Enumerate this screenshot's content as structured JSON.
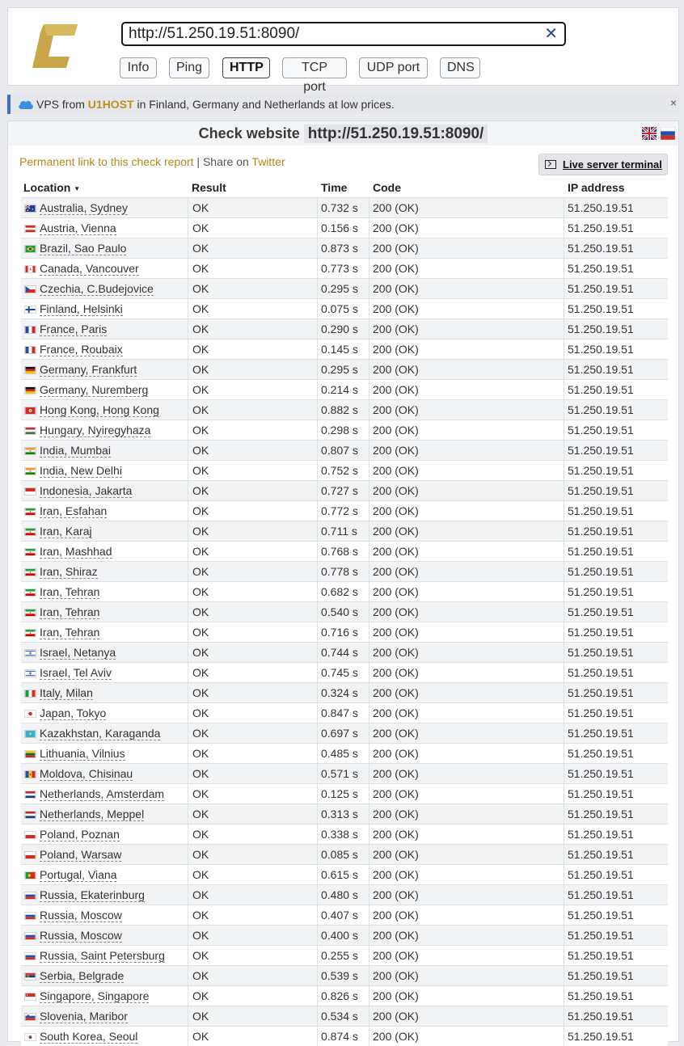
{
  "header": {
    "url": "http://51.250.19.51:8090/",
    "clear_icon": "✕",
    "tools": [
      "Info",
      "Ping",
      "HTTP",
      "TCP port",
      "UDP port",
      "DNS"
    ],
    "active_tool": "HTTP"
  },
  "ad": {
    "prefix": "VPS from ",
    "brand": "U1HOST",
    "suffix": " in Finland, Germany and Netherlands at low prices.",
    "close": "×"
  },
  "panel": {
    "title_label": "Check website",
    "target": "http://51.250.19.51:8090/",
    "permalink": "Permanent link to this check report",
    "separator": " | Share on ",
    "twitter": "Twitter",
    "terminal_button": "Live server terminal"
  },
  "table": {
    "headers": {
      "location": "Location",
      "result": "Result",
      "time": "Time",
      "code": "Code",
      "ip": "IP address"
    },
    "rows": [
      {
        "flag": "au",
        "location": "Australia, Sydney",
        "result": "OK",
        "time": "0.732 s",
        "code": "200 (OK)",
        "ip": "51.250.19.51"
      },
      {
        "flag": "at",
        "location": "Austria, Vienna",
        "result": "OK",
        "time": "0.156 s",
        "code": "200 (OK)",
        "ip": "51.250.19.51"
      },
      {
        "flag": "br",
        "location": "Brazil, Sao Paulo",
        "result": "OK",
        "time": "0.873 s",
        "code": "200 (OK)",
        "ip": "51.250.19.51"
      },
      {
        "flag": "ca",
        "location": "Canada, Vancouver",
        "result": "OK",
        "time": "0.773 s",
        "code": "200 (OK)",
        "ip": "51.250.19.51"
      },
      {
        "flag": "cz",
        "location": "Czechia, C.Budejovice",
        "result": "OK",
        "time": "0.295 s",
        "code": "200 (OK)",
        "ip": "51.250.19.51"
      },
      {
        "flag": "fi",
        "location": "Finland, Helsinki",
        "result": "OK",
        "time": "0.075 s",
        "code": "200 (OK)",
        "ip": "51.250.19.51"
      },
      {
        "flag": "fr",
        "location": "France, Paris",
        "result": "OK",
        "time": "0.290 s",
        "code": "200 (OK)",
        "ip": "51.250.19.51"
      },
      {
        "flag": "fr",
        "location": "France, Roubaix",
        "result": "OK",
        "time": "0.145 s",
        "code": "200 (OK)",
        "ip": "51.250.19.51"
      },
      {
        "flag": "de",
        "location": "Germany, Frankfurt",
        "result": "OK",
        "time": "0.295 s",
        "code": "200 (OK)",
        "ip": "51.250.19.51"
      },
      {
        "flag": "de",
        "location": "Germany, Nuremberg",
        "result": "OK",
        "time": "0.214 s",
        "code": "200 (OK)",
        "ip": "51.250.19.51"
      },
      {
        "flag": "hk",
        "location": "Hong Kong, Hong Kong",
        "result": "OK",
        "time": "0.882 s",
        "code": "200 (OK)",
        "ip": "51.250.19.51"
      },
      {
        "flag": "hu",
        "location": "Hungary, Nyiregyhaza",
        "result": "OK",
        "time": "0.298 s",
        "code": "200 (OK)",
        "ip": "51.250.19.51"
      },
      {
        "flag": "in",
        "location": "India, Mumbai",
        "result": "OK",
        "time": "0.807 s",
        "code": "200 (OK)",
        "ip": "51.250.19.51"
      },
      {
        "flag": "in",
        "location": "India, New Delhi",
        "result": "OK",
        "time": "0.752 s",
        "code": "200 (OK)",
        "ip": "51.250.19.51"
      },
      {
        "flag": "id",
        "location": "Indonesia, Jakarta",
        "result": "OK",
        "time": "0.727 s",
        "code": "200 (OK)",
        "ip": "51.250.19.51"
      },
      {
        "flag": "ir",
        "location": "Iran, Esfahan",
        "result": "OK",
        "time": "0.772 s",
        "code": "200 (OK)",
        "ip": "51.250.19.51"
      },
      {
        "flag": "ir",
        "location": "Iran, Karaj",
        "result": "OK",
        "time": "0.711 s",
        "code": "200 (OK)",
        "ip": "51.250.19.51"
      },
      {
        "flag": "ir",
        "location": "Iran, Mashhad",
        "result": "OK",
        "time": "0.768 s",
        "code": "200 (OK)",
        "ip": "51.250.19.51"
      },
      {
        "flag": "ir",
        "location": "Iran, Shiraz",
        "result": "OK",
        "time": "0.778 s",
        "code": "200 (OK)",
        "ip": "51.250.19.51"
      },
      {
        "flag": "ir",
        "location": "Iran, Tehran",
        "result": "OK",
        "time": "0.682 s",
        "code": "200 (OK)",
        "ip": "51.250.19.51"
      },
      {
        "flag": "ir",
        "location": "Iran, Tehran",
        "result": "OK",
        "time": "0.540 s",
        "code": "200 (OK)",
        "ip": "51.250.19.51"
      },
      {
        "flag": "ir",
        "location": "Iran, Tehran",
        "result": "OK",
        "time": "0.716 s",
        "code": "200 (OK)",
        "ip": "51.250.19.51"
      },
      {
        "flag": "il",
        "location": "Israel, Netanya",
        "result": "OK",
        "time": "0.744 s",
        "code": "200 (OK)",
        "ip": "51.250.19.51"
      },
      {
        "flag": "il",
        "location": "Israel, Tel Aviv",
        "result": "OK",
        "time": "0.745 s",
        "code": "200 (OK)",
        "ip": "51.250.19.51"
      },
      {
        "flag": "it",
        "location": "Italy, Milan",
        "result": "OK",
        "time": "0.324 s",
        "code": "200 (OK)",
        "ip": "51.250.19.51"
      },
      {
        "flag": "jp",
        "location": "Japan, Tokyo",
        "result": "OK",
        "time": "0.847 s",
        "code": "200 (OK)",
        "ip": "51.250.19.51"
      },
      {
        "flag": "kz",
        "location": "Kazakhstan, Karaganda",
        "result": "OK",
        "time": "0.697 s",
        "code": "200 (OK)",
        "ip": "51.250.19.51"
      },
      {
        "flag": "lt",
        "location": "Lithuania, Vilnius",
        "result": "OK",
        "time": "0.485 s",
        "code": "200 (OK)",
        "ip": "51.250.19.51"
      },
      {
        "flag": "md",
        "location": "Moldova, Chisinau",
        "result": "OK",
        "time": "0.571 s",
        "code": "200 (OK)",
        "ip": "51.250.19.51"
      },
      {
        "flag": "nl",
        "location": "Netherlands, Amsterdam",
        "result": "OK",
        "time": "0.125 s",
        "code": "200 (OK)",
        "ip": "51.250.19.51"
      },
      {
        "flag": "nl",
        "location": "Netherlands, Meppel",
        "result": "OK",
        "time": "0.313 s",
        "code": "200 (OK)",
        "ip": "51.250.19.51"
      },
      {
        "flag": "pl",
        "location": "Poland, Poznan",
        "result": "OK",
        "time": "0.338 s",
        "code": "200 (OK)",
        "ip": "51.250.19.51"
      },
      {
        "flag": "pl",
        "location": "Poland, Warsaw",
        "result": "OK",
        "time": "0.085 s",
        "code": "200 (OK)",
        "ip": "51.250.19.51"
      },
      {
        "flag": "pt",
        "location": "Portugal, Viana",
        "result": "OK",
        "time": "0.615 s",
        "code": "200 (OK)",
        "ip": "51.250.19.51"
      },
      {
        "flag": "ru",
        "location": "Russia, Ekaterinburg",
        "result": "OK",
        "time": "0.480 s",
        "code": "200 (OK)",
        "ip": "51.250.19.51"
      },
      {
        "flag": "ru",
        "location": "Russia, Moscow",
        "result": "OK",
        "time": "0.407 s",
        "code": "200 (OK)",
        "ip": "51.250.19.51"
      },
      {
        "flag": "ru",
        "location": "Russia, Moscow",
        "result": "OK",
        "time": "0.400 s",
        "code": "200 (OK)",
        "ip": "51.250.19.51"
      },
      {
        "flag": "ru",
        "location": "Russia, Saint Petersburg",
        "result": "OK",
        "time": "0.255 s",
        "code": "200 (OK)",
        "ip": "51.250.19.51"
      },
      {
        "flag": "rs",
        "location": "Serbia, Belgrade",
        "result": "OK",
        "time": "0.539 s",
        "code": "200 (OK)",
        "ip": "51.250.19.51"
      },
      {
        "flag": "sg",
        "location": "Singapore, Singapore",
        "result": "OK",
        "time": "0.826 s",
        "code": "200 (OK)",
        "ip": "51.250.19.51"
      },
      {
        "flag": "si",
        "location": "Slovenia, Maribor",
        "result": "OK",
        "time": "0.534 s",
        "code": "200 (OK)",
        "ip": "51.250.19.51"
      },
      {
        "flag": "kr",
        "location": "South Korea, Seoul",
        "result": "OK",
        "time": "0.874 s",
        "code": "200 (OK)",
        "ip": "51.250.19.51"
      }
    ]
  },
  "colors": {
    "accent_link": "#b08a17",
    "logo": "#c9a64a",
    "ad_border": "#3b6fd1"
  },
  "icons": {
    "logo": "logo-c-icon",
    "clear": "close-icon",
    "ad": "cloud-icon",
    "terminal": "terminal-icon",
    "lang_en": "uk-flag-icon",
    "lang_ru": "ru-flag-icon"
  }
}
